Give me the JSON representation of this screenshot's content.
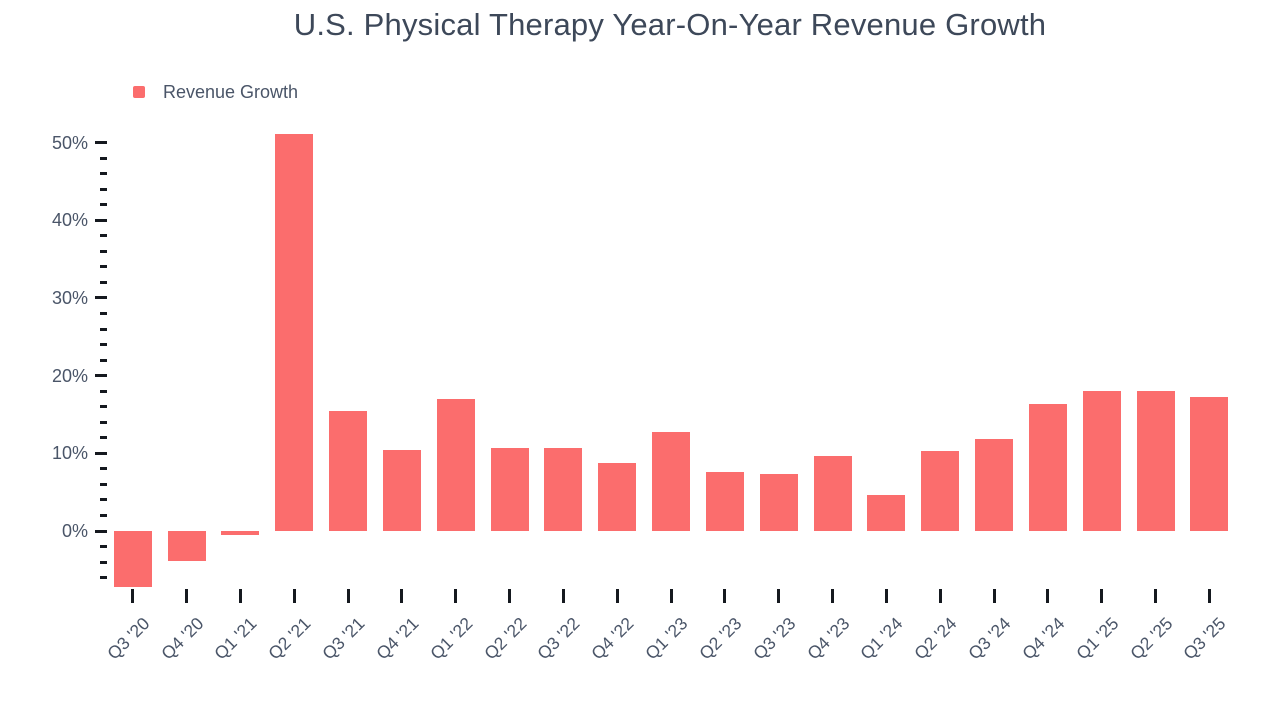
{
  "title": "U.S. Physical Therapy Year-On-Year Revenue Growth",
  "legend": {
    "label": "Revenue Growth",
    "swatch_color": "#FB6D6D"
  },
  "chart_data": {
    "type": "bar",
    "title": "U.S. Physical Therapy Year-On-Year Revenue Growth",
    "series_name": "Revenue Growth",
    "categories": [
      "Q3 '20",
      "Q4 '20",
      "Q1 '21",
      "Q2 '21",
      "Q3 '21",
      "Q4 '21",
      "Q1 '22",
      "Q2 '22",
      "Q3 '22",
      "Q4 '22",
      "Q1 '23",
      "Q2 '23",
      "Q3 '23",
      "Q4 '23",
      "Q1 '24",
      "Q2 '24",
      "Q3 '24",
      "Q4 '24",
      "Q1 '25",
      "Q2 '25",
      "Q3 '25"
    ],
    "values": [
      -7.2,
      -3.9,
      -0.5,
      51.1,
      15.5,
      10.4,
      17.0,
      10.7,
      10.7,
      8.7,
      12.7,
      7.6,
      7.4,
      9.6,
      4.7,
      10.3,
      11.9,
      16.4,
      18.0,
      18.0,
      17.2
    ],
    "xlabel": "",
    "ylabel": "",
    "ylim": [
      -7.5,
      51.5
    ],
    "y_major_ticks": [
      0,
      10,
      20,
      30,
      40,
      50
    ],
    "y_major_tick_labels": [
      "0%",
      "10%",
      "20%",
      "30%",
      "40%",
      "50%"
    ],
    "y_minor_ticks": [
      -6,
      -4,
      -2,
      2,
      4,
      6,
      8,
      12,
      14,
      16,
      18,
      22,
      24,
      26,
      28,
      32,
      34,
      36,
      38,
      42,
      44,
      46,
      48
    ],
    "grid": false,
    "legend_position": "top-left",
    "bar_color": "#FB6D6D"
  },
  "colors": {
    "background": "#FFFFFF",
    "bar": "#FB6D6D",
    "title_text": "#3D4859",
    "axis_label_text": "#4A5568",
    "tick_mark": "#15191F"
  }
}
